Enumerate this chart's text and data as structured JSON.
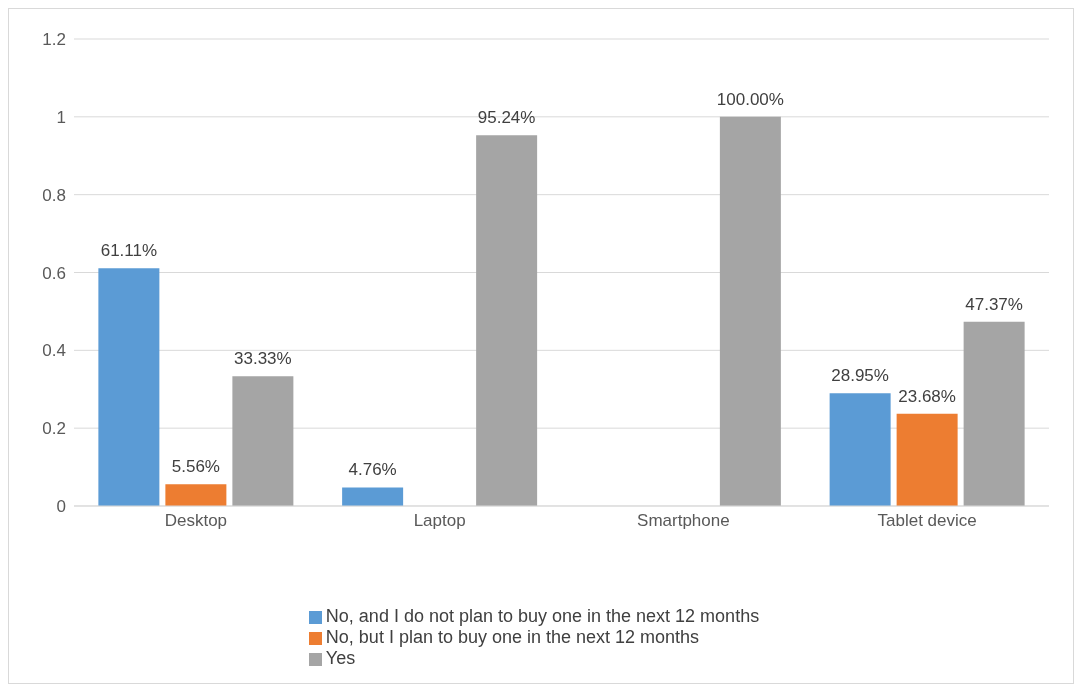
{
  "chart_data": {
    "type": "bar",
    "categories": [
      "Desktop",
      "Laptop",
      "Smartphone",
      "Tablet device"
    ],
    "series": [
      {
        "name": "No, and I do not plan to buy one in the next 12 months",
        "color": "#5b9bd5",
        "values": [
          0.6111,
          0.0476,
          null,
          0.2895
        ],
        "value_labels": [
          "61.11%",
          "4.76%",
          null,
          "28.95%"
        ]
      },
      {
        "name": "No, but I plan to buy one in the next 12 months",
        "color": "#ed7d31",
        "values": [
          0.0556,
          null,
          null,
          0.2368
        ],
        "value_labels": [
          "5.56%",
          null,
          null,
          "23.68%"
        ]
      },
      {
        "name": "Yes",
        "color": "#a5a5a5",
        "values": [
          0.3333,
          0.9524,
          1.0,
          0.4737
        ],
        "value_labels": [
          "33.33%",
          "95.24%",
          "100.00%",
          "47.37%"
        ]
      }
    ],
    "ylim": [
      0,
      1.2
    ],
    "yticks": [
      0,
      0.2,
      0.4,
      0.6,
      0.8,
      1,
      1.2
    ],
    "grid": "y",
    "legend": "bottom"
  }
}
